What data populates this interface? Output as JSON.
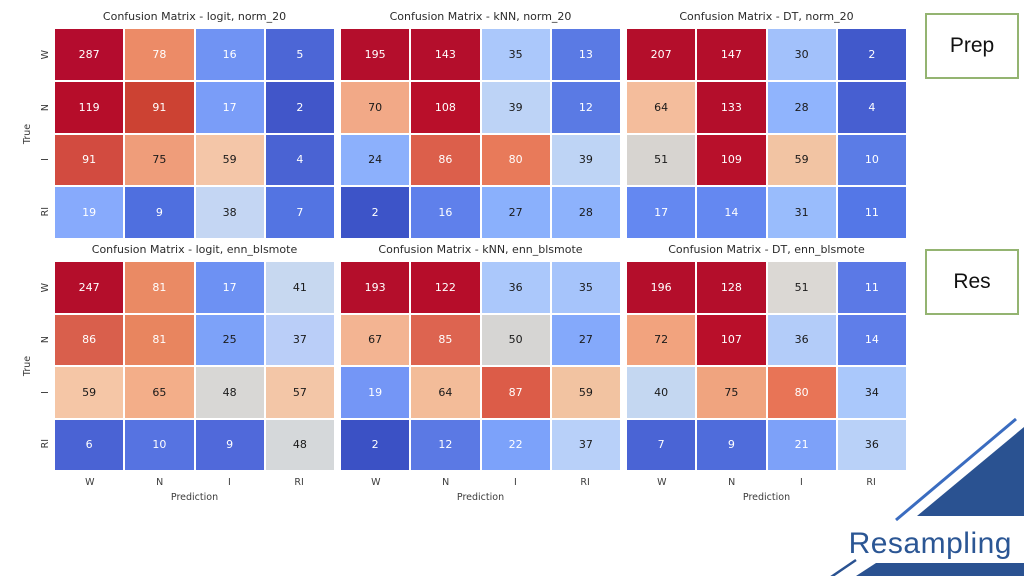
{
  "chart_data": {
    "type": "heatmap",
    "colormap": "coolwarm",
    "x_classes": [
      "W",
      "N",
      "I",
      "RI"
    ],
    "y_classes": [
      "W",
      "N",
      "I",
      "RI"
    ],
    "xlabel": "Prediction",
    "ylabel": "True",
    "grid": false,
    "charts": [
      {
        "title": "Confusion Matrix - logit, norm_20",
        "rows": [
          [
            {
              "v": 287,
              "c": "#b40c2e",
              "t": "w"
            },
            {
              "v": 78,
              "c": "#ec8b67",
              "t": "w"
            },
            {
              "v": 16,
              "c": "#7093f3",
              "t": "w"
            },
            {
              "v": 5,
              "c": "#4c66d6",
              "t": "w"
            }
          ],
          [
            {
              "v": 119,
              "c": "#b60d2a",
              "t": "w"
            },
            {
              "v": 91,
              "c": "#cc4233",
              "t": "w"
            },
            {
              "v": 17,
              "c": "#7a9df8",
              "t": "w"
            },
            {
              "v": 2,
              "c": "#4156c9",
              "t": "w"
            }
          ],
          [
            {
              "v": 91,
              "c": "#d24b40",
              "t": "w"
            },
            {
              "v": 75,
              "c": "#ef9d7a",
              "t": "b"
            },
            {
              "v": 59,
              "c": "#f4c6a8",
              "t": "b"
            },
            {
              "v": 4,
              "c": "#4a63d3",
              "t": "w"
            }
          ],
          [
            {
              "v": 19,
              "c": "#87aafc",
              "t": "w"
            },
            {
              "v": 9,
              "c": "#4f6fdf",
              "t": "w"
            },
            {
              "v": 38,
              "c": "#c4d6f3",
              "t": "b"
            },
            {
              "v": 7,
              "c": "#5374e2",
              "t": "w"
            }
          ]
        ]
      },
      {
        "title": "Confusion Matrix - kNN, norm_20",
        "rows": [
          [
            {
              "v": 195,
              "c": "#b40e2c",
              "t": "w"
            },
            {
              "v": 143,
              "c": "#b40e2c",
              "t": "w"
            },
            {
              "v": 35,
              "c": "#abc8fb",
              "t": "b"
            },
            {
              "v": 13,
              "c": "#5a7ae4",
              "t": "w"
            }
          ],
          [
            {
              "v": 70,
              "c": "#f2a987",
              "t": "b"
            },
            {
              "v": 108,
              "c": "#b90f2a",
              "t": "w"
            },
            {
              "v": 39,
              "c": "#bdd3f6",
              "t": "b"
            },
            {
              "v": 12,
              "c": "#5a7ae4",
              "t": "w"
            }
          ],
          [
            {
              "v": 24,
              "c": "#8cb0fc",
              "t": "b"
            },
            {
              "v": 86,
              "c": "#dc5f4b",
              "t": "w"
            },
            {
              "v": 80,
              "c": "#e87a5a",
              "t": "w"
            },
            {
              "v": 39,
              "c": "#bed4f5",
              "t": "b"
            }
          ],
          [
            {
              "v": 2,
              "c": "#3d54c8",
              "t": "w"
            },
            {
              "v": 16,
              "c": "#5f80eb",
              "t": "w"
            },
            {
              "v": 27,
              "c": "#8ab0fc",
              "t": "b"
            },
            {
              "v": 28,
              "c": "#8db2fc",
              "t": "b"
            }
          ]
        ]
      },
      {
        "title": "Confusion Matrix - DT, norm_20",
        "rows": [
          [
            {
              "v": 207,
              "c": "#b40e2b",
              "t": "w"
            },
            {
              "v": 147,
              "c": "#b40e2b",
              "t": "w"
            },
            {
              "v": 30,
              "c": "#a2c1fb",
              "t": "b"
            },
            {
              "v": 2,
              "c": "#4159cb",
              "t": "w"
            }
          ],
          [
            {
              "v": 64,
              "c": "#f4bd9c",
              "t": "b"
            },
            {
              "v": 133,
              "c": "#b40e2b",
              "t": "w"
            },
            {
              "v": 28,
              "c": "#90b4fd",
              "t": "b"
            },
            {
              "v": 4,
              "c": "#475fd1",
              "t": "w"
            }
          ],
          [
            {
              "v": 51,
              "c": "#d7d4d0",
              "t": "b"
            },
            {
              "v": 109,
              "c": "#b8102b",
              "t": "w"
            },
            {
              "v": 59,
              "c": "#f2c4a3",
              "t": "b"
            },
            {
              "v": 10,
              "c": "#5b7ce6",
              "t": "w"
            }
          ],
          [
            {
              "v": 17,
              "c": "#6488f1",
              "t": "w"
            },
            {
              "v": 14,
              "c": "#6488f1",
              "t": "w"
            },
            {
              "v": 31,
              "c": "#99bcfc",
              "t": "b"
            },
            {
              "v": 11,
              "c": "#5477e7",
              "t": "w"
            }
          ]
        ]
      },
      {
        "title": "Confusion Matrix - logit, enn_blsmote",
        "rows": [
          [
            {
              "v": 247,
              "c": "#b40e2b",
              "t": "w"
            },
            {
              "v": 81,
              "c": "#ea8a64",
              "t": "w"
            },
            {
              "v": 17,
              "c": "#6d91f3",
              "t": "w"
            },
            {
              "v": 41,
              "c": "#c7d8f0",
              "t": "b"
            }
          ],
          [
            {
              "v": 86,
              "c": "#d95f4c",
              "t": "w"
            },
            {
              "v": 81,
              "c": "#e8855f",
              "t": "w"
            },
            {
              "v": 25,
              "c": "#7da2f9",
              "t": "b"
            },
            {
              "v": 37,
              "c": "#bacef8",
              "t": "b"
            }
          ],
          [
            {
              "v": 59,
              "c": "#f5c6a6",
              "t": "b"
            },
            {
              "v": 65,
              "c": "#f3ae89",
              "t": "b"
            },
            {
              "v": 48,
              "c": "#d8d7d5",
              "t": "b"
            },
            {
              "v": 57,
              "c": "#f3c6a7",
              "t": "b"
            }
          ],
          [
            {
              "v": 6,
              "c": "#4a63d4",
              "t": "w"
            },
            {
              "v": 10,
              "c": "#5673e1",
              "t": "w"
            },
            {
              "v": 9,
              "c": "#5069da",
              "t": "w"
            },
            {
              "v": 48,
              "c": "#d5d8da",
              "t": "b"
            }
          ]
        ]
      },
      {
        "title": "Confusion Matrix - kNN, enn_blsmote",
        "rows": [
          [
            {
              "v": 193,
              "c": "#b40e2b",
              "t": "w"
            },
            {
              "v": 122,
              "c": "#b60d2a",
              "t": "w"
            },
            {
              "v": 36,
              "c": "#abc8fb",
              "t": "b"
            },
            {
              "v": 35,
              "c": "#a6c4fb",
              "t": "b"
            }
          ],
          [
            {
              "v": 67,
              "c": "#f3b492",
              "t": "b"
            },
            {
              "v": 85,
              "c": "#dd6450",
              "t": "w"
            },
            {
              "v": 50,
              "c": "#d6d5d3",
              "t": "b"
            },
            {
              "v": 27,
              "c": "#84a9fb",
              "t": "b"
            }
          ],
          [
            {
              "v": 19,
              "c": "#7496f6",
              "t": "w"
            },
            {
              "v": 64,
              "c": "#f3bc99",
              "t": "b"
            },
            {
              "v": 87,
              "c": "#dc5c48",
              "t": "w"
            },
            {
              "v": 59,
              "c": "#f2c3a1",
              "t": "b"
            }
          ],
          [
            {
              "v": 2,
              "c": "#3b51c5",
              "t": "w"
            },
            {
              "v": 12,
              "c": "#5b79e4",
              "t": "w"
            },
            {
              "v": 22,
              "c": "#7ca2fa",
              "t": "w"
            },
            {
              "v": 37,
              "c": "#b8d0f9",
              "t": "b"
            }
          ]
        ]
      },
      {
        "title": "Confusion Matrix - DT, enn_blsmote",
        "rows": [
          [
            {
              "v": 196,
              "c": "#b40e2b",
              "t": "w"
            },
            {
              "v": 128,
              "c": "#b40e2b",
              "t": "w"
            },
            {
              "v": 51,
              "c": "#dbd8d4",
              "t": "b"
            },
            {
              "v": 11,
              "c": "#5b79e6",
              "t": "w"
            }
          ],
          [
            {
              "v": 72,
              "c": "#f2a37e",
              "t": "b"
            },
            {
              "v": 107,
              "c": "#b90f2a",
              "t": "w"
            },
            {
              "v": 36,
              "c": "#b3ccf9",
              "t": "b"
            },
            {
              "v": 14,
              "c": "#5f7ee9",
              "t": "w"
            }
          ],
          [
            {
              "v": 40,
              "c": "#c4d7f1",
              "t": "b"
            },
            {
              "v": 75,
              "c": "#f0a47f",
              "t": "b"
            },
            {
              "v": 80,
              "c": "#e87456",
              "t": "w"
            },
            {
              "v": 34,
              "c": "#aac8fb",
              "t": "b"
            }
          ],
          [
            {
              "v": 7,
              "c": "#4a64d5",
              "t": "w"
            },
            {
              "v": 9,
              "c": "#4f6cdb",
              "t": "w"
            },
            {
              "v": 21,
              "c": "#7da1f9",
              "t": "w"
            },
            {
              "v": 36,
              "c": "#b9d1f8",
              "t": "b"
            }
          ]
        ]
      }
    ]
  },
  "annotations": {
    "prep_label": "Prep",
    "res_label": "Res",
    "corner_label": "Resampling"
  },
  "colors": {
    "annotation_box_border": "#94b471",
    "title_text": "#2b2b2b",
    "tick_text": "#3b3b3b",
    "cell_text_light": "#ffffff",
    "cell_text_dark": "#1a1a1a",
    "corner_text": "#2b5694",
    "corner_fill": "#2a5291",
    "corner_line": "#3a6cc0"
  }
}
